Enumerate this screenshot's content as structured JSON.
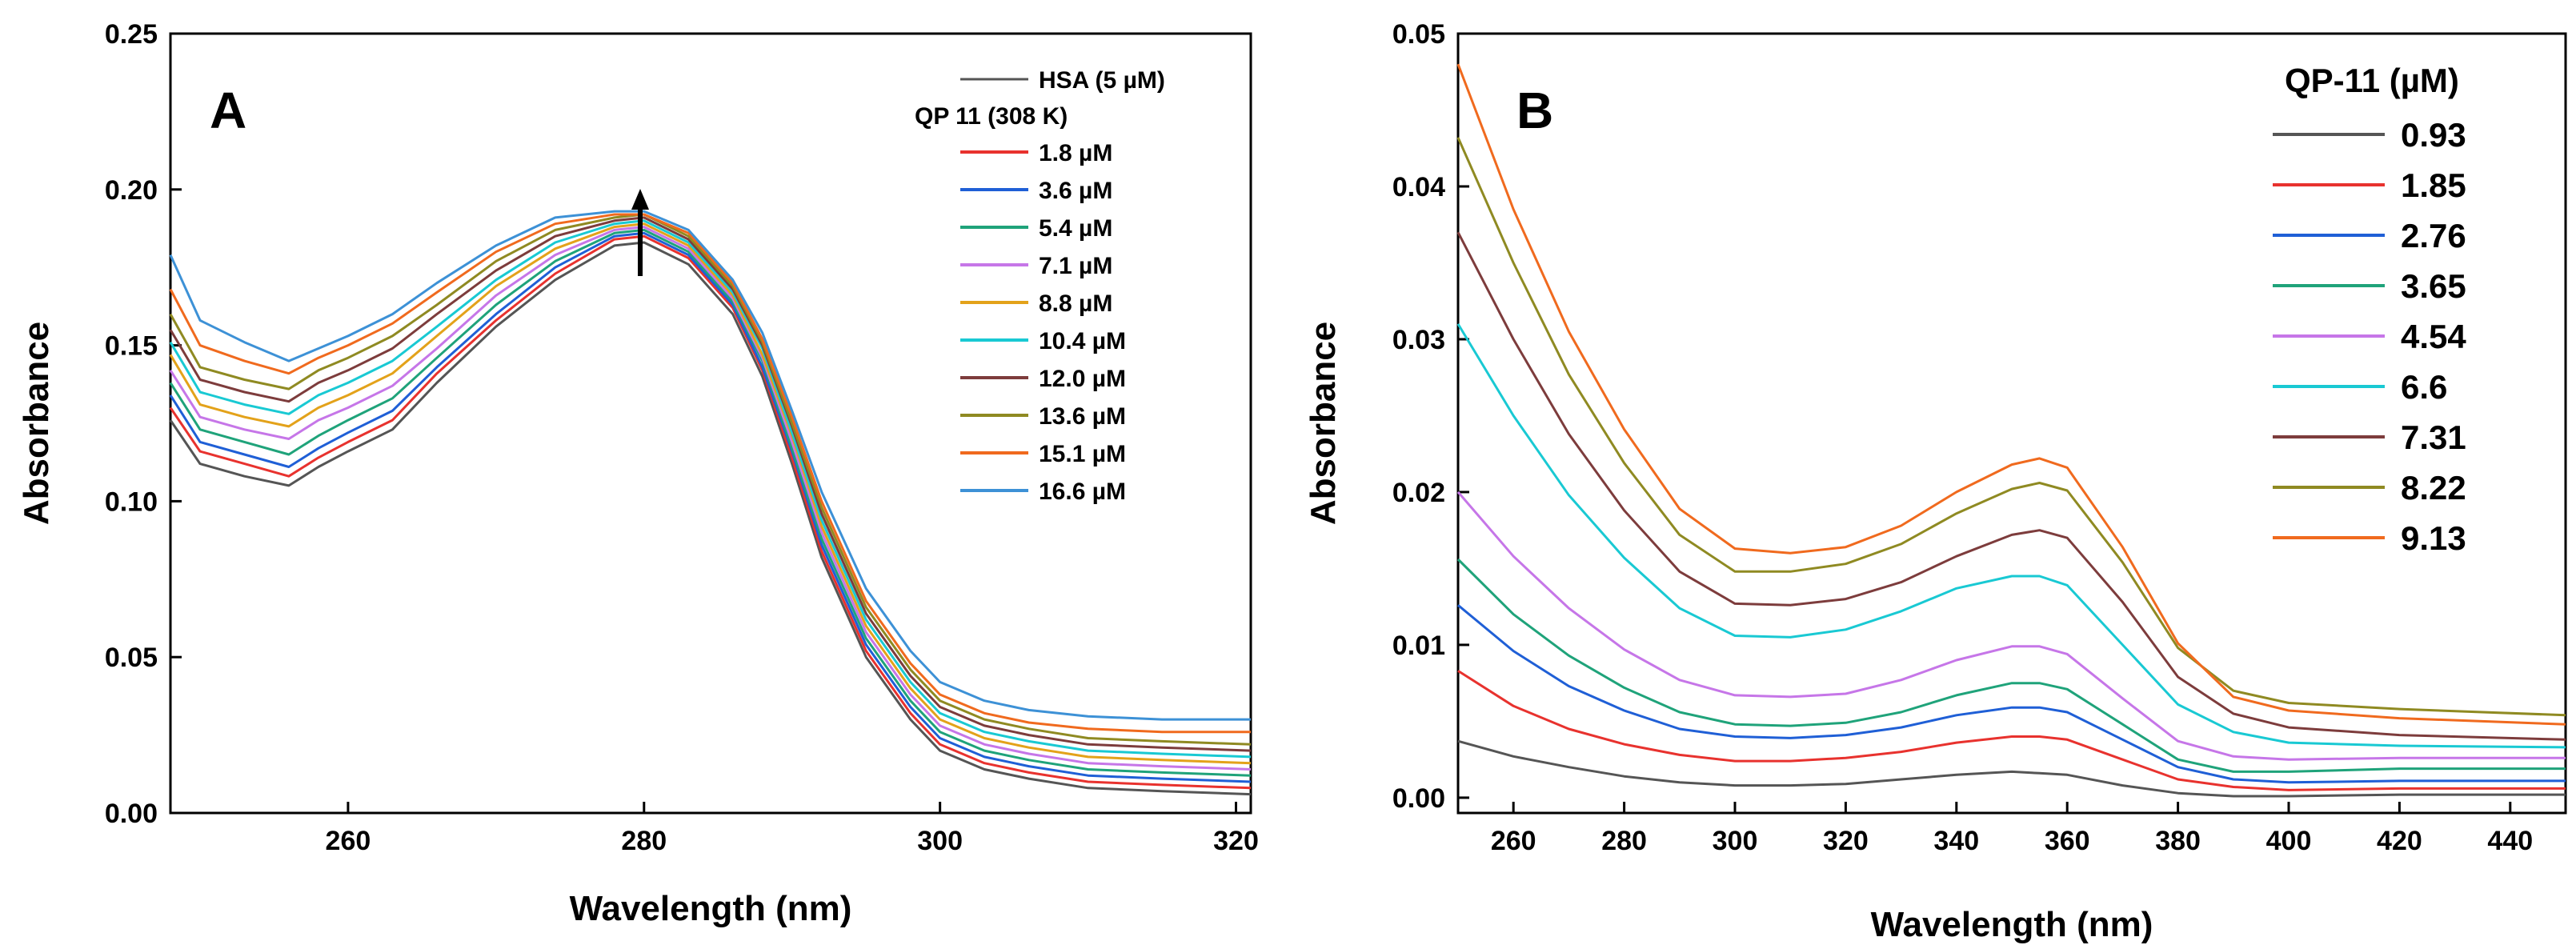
{
  "chart_data": [
    {
      "panel_label": "A",
      "type": "line",
      "xlabel": "Wavelength (nm)",
      "ylabel": "Absorbance",
      "xlim": [
        248,
        321
      ],
      "ylim": [
        0,
        0.25
      ],
      "xticks": [
        "260",
        "280",
        "300",
        "320"
      ],
      "yticks": [
        "0.00",
        "0.05",
        "0.10",
        "0.15",
        "0.20",
        "0.25"
      ],
      "grid": false,
      "legend_position": "top-right",
      "legend_header": "QP 11 (308 K)",
      "annotation": "upward arrow at 280 nm indicating increasing absorbance",
      "x": [
        248,
        250,
        253,
        256,
        258,
        260,
        263,
        266,
        270,
        274,
        278,
        280,
        283,
        286,
        288,
        290,
        292,
        295,
        298,
        300,
        303,
        306,
        310,
        315,
        321
      ],
      "series": [
        {
          "name": "HSA (5 µM)",
          "color": "#555555",
          "values": [
            0.126,
            0.112,
            0.108,
            0.105,
            0.111,
            0.116,
            0.123,
            0.138,
            0.156,
            0.171,
            0.182,
            0.183,
            0.176,
            0.16,
            0.14,
            0.112,
            0.082,
            0.05,
            0.03,
            0.02,
            0.014,
            0.011,
            0.008,
            0.007,
            0.006
          ]
        },
        {
          "name": "1.8 µM",
          "color": "#e8322e",
          "values": [
            0.13,
            0.116,
            0.112,
            0.108,
            0.114,
            0.119,
            0.126,
            0.141,
            0.158,
            0.173,
            0.184,
            0.185,
            0.178,
            0.162,
            0.142,
            0.114,
            0.084,
            0.052,
            0.032,
            0.022,
            0.016,
            0.013,
            0.01,
            0.009,
            0.008
          ]
        },
        {
          "name": "3.6 µM",
          "color": "#1f5fd6",
          "values": [
            0.134,
            0.119,
            0.115,
            0.111,
            0.117,
            0.122,
            0.129,
            0.143,
            0.16,
            0.175,
            0.185,
            0.186,
            0.179,
            0.163,
            0.143,
            0.116,
            0.086,
            0.054,
            0.034,
            0.024,
            0.018,
            0.015,
            0.012,
            0.011,
            0.01
          ]
        },
        {
          "name": "5.4 µM",
          "color": "#1fa37a",
          "values": [
            0.138,
            0.123,
            0.119,
            0.115,
            0.121,
            0.126,
            0.133,
            0.146,
            0.163,
            0.177,
            0.186,
            0.187,
            0.18,
            0.164,
            0.145,
            0.117,
            0.088,
            0.056,
            0.036,
            0.026,
            0.02,
            0.017,
            0.014,
            0.013,
            0.012
          ]
        },
        {
          "name": "7.1 µM",
          "color": "#c676e8",
          "values": [
            0.142,
            0.127,
            0.123,
            0.12,
            0.126,
            0.13,
            0.137,
            0.149,
            0.166,
            0.179,
            0.187,
            0.188,
            0.181,
            0.165,
            0.146,
            0.119,
            0.09,
            0.058,
            0.038,
            0.028,
            0.022,
            0.019,
            0.016,
            0.015,
            0.014
          ]
        },
        {
          "name": "8.8 µM",
          "color": "#e3a21a",
          "values": [
            0.147,
            0.131,
            0.127,
            0.124,
            0.13,
            0.134,
            0.141,
            0.153,
            0.169,
            0.181,
            0.188,
            0.189,
            0.182,
            0.166,
            0.147,
            0.121,
            0.092,
            0.06,
            0.04,
            0.03,
            0.024,
            0.021,
            0.018,
            0.017,
            0.016
          ]
        },
        {
          "name": "10.4 µM",
          "color": "#19c9d3",
          "values": [
            0.151,
            0.135,
            0.131,
            0.128,
            0.134,
            0.138,
            0.145,
            0.156,
            0.171,
            0.183,
            0.189,
            0.19,
            0.183,
            0.167,
            0.149,
            0.122,
            0.094,
            0.062,
            0.042,
            0.032,
            0.026,
            0.023,
            0.02,
            0.019,
            0.018
          ]
        },
        {
          "name": "12.0 µM",
          "color": "#7d3c3c",
          "values": [
            0.155,
            0.139,
            0.135,
            0.132,
            0.138,
            0.142,
            0.149,
            0.16,
            0.174,
            0.185,
            0.19,
            0.191,
            0.184,
            0.168,
            0.15,
            0.124,
            0.096,
            0.064,
            0.044,
            0.034,
            0.028,
            0.025,
            0.022,
            0.021,
            0.02
          ]
        },
        {
          "name": "13.6 µM",
          "color": "#8f8a22",
          "values": [
            0.16,
            0.143,
            0.139,
            0.136,
            0.142,
            0.146,
            0.153,
            0.163,
            0.177,
            0.187,
            0.191,
            0.192,
            0.185,
            0.169,
            0.151,
            0.125,
            0.098,
            0.066,
            0.046,
            0.036,
            0.03,
            0.027,
            0.024,
            0.023,
            0.022
          ]
        },
        {
          "name": "15.1 µM",
          "color": "#f06a1e",
          "values": [
            0.168,
            0.15,
            0.145,
            0.141,
            0.146,
            0.15,
            0.157,
            0.167,
            0.18,
            0.189,
            0.192,
            0.192,
            0.186,
            0.17,
            0.152,
            0.127,
            0.1,
            0.068,
            0.048,
            0.038,
            0.032,
            0.029,
            0.027,
            0.026,
            0.026
          ]
        },
        {
          "name": "16.6 µM",
          "color": "#3d91d6",
          "values": [
            0.179,
            0.158,
            0.151,
            0.145,
            0.149,
            0.153,
            0.16,
            0.17,
            0.182,
            0.191,
            0.193,
            0.193,
            0.187,
            0.171,
            0.154,
            0.129,
            0.103,
            0.072,
            0.052,
            0.042,
            0.036,
            0.033,
            0.031,
            0.03,
            0.03
          ]
        }
      ]
    },
    {
      "panel_label": "B",
      "type": "line",
      "xlabel": "Wavelength (nm)",
      "ylabel": "Absorbance",
      "xlim": [
        250,
        450
      ],
      "ylim": [
        -0.001,
        0.05
      ],
      "xticks": [
        "260",
        "280",
        "300",
        "320",
        "340",
        "360",
        "380",
        "400",
        "420",
        "440"
      ],
      "yticks": [
        "0.00",
        "0.01",
        "0.02",
        "0.03",
        "0.04",
        "0.05"
      ],
      "grid": false,
      "legend_position": "top-right",
      "legend_title": "QP-11 (µM)",
      "x": [
        250,
        260,
        270,
        280,
        290,
        300,
        310,
        320,
        330,
        340,
        350,
        355,
        360,
        370,
        380,
        390,
        400,
        420,
        450
      ],
      "series": [
        {
          "name": "0.93",
          "color": "#555555",
          "values": [
            0.0037,
            0.0027,
            0.002,
            0.0014,
            0.001,
            0.0008,
            0.0008,
            0.0009,
            0.0012,
            0.0015,
            0.0017,
            0.0016,
            0.0015,
            0.0008,
            0.0003,
            0.0001,
            0.0001,
            0.0002,
            0.0002
          ]
        },
        {
          "name": "1.85",
          "color": "#e8322e",
          "values": [
            0.0083,
            0.006,
            0.0045,
            0.0035,
            0.0028,
            0.0024,
            0.0024,
            0.0026,
            0.003,
            0.0036,
            0.004,
            0.004,
            0.0038,
            0.0025,
            0.0012,
            0.0007,
            0.0005,
            0.0006,
            0.0006
          ]
        },
        {
          "name": "2.76",
          "color": "#1f5fd6",
          "values": [
            0.0126,
            0.0096,
            0.0073,
            0.0057,
            0.0045,
            0.004,
            0.0039,
            0.0041,
            0.0046,
            0.0054,
            0.0059,
            0.0059,
            0.0056,
            0.0038,
            0.002,
            0.0012,
            0.001,
            0.0011,
            0.0011
          ]
        },
        {
          "name": "3.65",
          "color": "#1fa37a",
          "values": [
            0.0156,
            0.012,
            0.0093,
            0.0072,
            0.0056,
            0.0048,
            0.0047,
            0.0049,
            0.0056,
            0.0067,
            0.0075,
            0.0075,
            0.0071,
            0.0048,
            0.0025,
            0.0017,
            0.0017,
            0.0019,
            0.0019
          ]
        },
        {
          "name": "4.54",
          "color": "#c676e8",
          "values": [
            0.02,
            0.0158,
            0.0124,
            0.0097,
            0.0077,
            0.0067,
            0.0066,
            0.0068,
            0.0077,
            0.009,
            0.0099,
            0.0099,
            0.0094,
            0.0065,
            0.0037,
            0.0027,
            0.0025,
            0.0026,
            0.0026
          ]
        },
        {
          "name": "6.6",
          "color": "#19c9d3",
          "values": [
            0.031,
            0.025,
            0.0198,
            0.0157,
            0.0124,
            0.0106,
            0.0105,
            0.011,
            0.0122,
            0.0137,
            0.0145,
            0.0145,
            0.0139,
            0.01,
            0.0061,
            0.0043,
            0.0036,
            0.0034,
            0.0033
          ]
        },
        {
          "name": "7.31",
          "color": "#7d3c3c",
          "values": [
            0.037,
            0.03,
            0.0238,
            0.0188,
            0.0148,
            0.0127,
            0.0126,
            0.013,
            0.0141,
            0.0158,
            0.0172,
            0.0175,
            0.017,
            0.0128,
            0.0079,
            0.0055,
            0.0046,
            0.0041,
            0.0038
          ]
        },
        {
          "name": "8.22",
          "color": "#8f8a22",
          "values": [
            0.0432,
            0.035,
            0.0277,
            0.0219,
            0.0172,
            0.0148,
            0.0148,
            0.0153,
            0.0166,
            0.0186,
            0.0202,
            0.0206,
            0.0201,
            0.0154,
            0.0098,
            0.007,
            0.0062,
            0.0058,
            0.0054
          ]
        },
        {
          "name": "9.13",
          "color": "#f06a1e",
          "values": [
            0.048,
            0.0385,
            0.0305,
            0.0241,
            0.0189,
            0.0163,
            0.016,
            0.0164,
            0.0178,
            0.02,
            0.0218,
            0.0222,
            0.0216,
            0.0164,
            0.0101,
            0.0066,
            0.0057,
            0.0052,
            0.0048
          ]
        }
      ]
    }
  ]
}
